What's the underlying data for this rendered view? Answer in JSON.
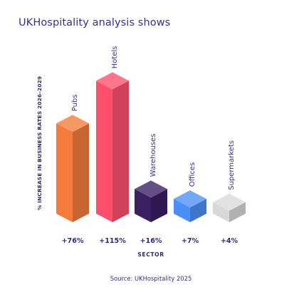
{
  "title": "UKHospitality analysis shows",
  "source": "Source: UKHospitality 2025",
  "chart_data": {
    "type": "bar",
    "categories": [
      "Pubs",
      "Hotels",
      "Warehouses",
      "Offices",
      "Supermarkets"
    ],
    "values": [
      76,
      115,
      16,
      7,
      4
    ],
    "value_labels": [
      "+76%",
      "+115%",
      "+16%",
      "+7%",
      "+4%"
    ],
    "colors": [
      "#f47b3a",
      "#ff4f6c",
      "#3a1f63",
      "#4a8ff5",
      "#d8d8d8"
    ],
    "xlabel": "SECTOR",
    "ylabel": "% INCREASE IN BUSINESS RATES 2026–2029",
    "ylim": [
      0,
      120
    ],
    "grid": false,
    "legend": "none",
    "style": "3d-isometric"
  }
}
